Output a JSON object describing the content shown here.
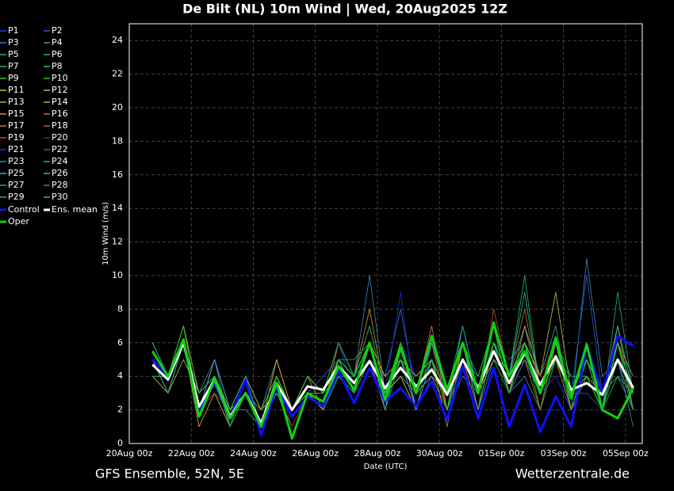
{
  "chart_data": {
    "type": "line",
    "title": "De Bilt  (NL)  10m Wind | Wed, 20Aug2025 12Z",
    "y_label": "10m Wind (m/s)",
    "x_label": "Date (UTC)",
    "footer_left": "GFS Ensemble, 52N, 5E",
    "footer_right": "Wetterzentrale.de",
    "xlim": [
      0,
      397
    ],
    "ylim": [
      0,
      25
    ],
    "xticks": [
      {
        "value": 0,
        "label": "20Aug 00z"
      },
      {
        "value": 48,
        "label": "22Aug 00z"
      },
      {
        "value": 96,
        "label": "24Aug 00z"
      },
      {
        "value": 144,
        "label": "26Aug 00z"
      },
      {
        "value": 192,
        "label": "28Aug 00z"
      },
      {
        "value": 240,
        "label": "30Aug 00z"
      },
      {
        "value": 288,
        "label": "01Sep 00z"
      },
      {
        "value": 336,
        "label": "03Sep 00z"
      },
      {
        "value": 384,
        "label": "05Sep 00z"
      }
    ],
    "yticks": [
      0,
      2,
      4,
      6,
      8,
      10,
      12,
      14,
      16,
      18,
      20,
      22,
      24
    ],
    "grid": true,
    "x": [
      18,
      30,
      42,
      54,
      66,
      78,
      90,
      102,
      114,
      126,
      138,
      150,
      162,
      174,
      186,
      198,
      210,
      222,
      234,
      246,
      258,
      270,
      282,
      294,
      306,
      318,
      330,
      342,
      354,
      366,
      378,
      390
    ],
    "series": [
      {
        "name": "P1",
        "color": "#1a3cff",
        "values": [
          5,
          4,
          7,
          2,
          4,
          1,
          3,
          1,
          4,
          2,
          4,
          3,
          6,
          3,
          5,
          2,
          6,
          4,
          5,
          2,
          6,
          3,
          7,
          4,
          6,
          3,
          4,
          2,
          5,
          3,
          6,
          4
        ]
      },
      {
        "name": "P2",
        "color": "#2a5ad8",
        "values": [
          4,
          4,
          6,
          3,
          4,
          2,
          3,
          2,
          3,
          1,
          3,
          4,
          5,
          4,
          6,
          3,
          5,
          2,
          4,
          3,
          5,
          2,
          6,
          3,
          5,
          4,
          6,
          3,
          3,
          2,
          5,
          3
        ]
      },
      {
        "name": "P3",
        "color": "#3a78c8",
        "values": [
          5,
          3,
          6,
          2,
          5,
          2,
          4,
          1,
          4,
          2,
          3,
          2,
          4,
          3,
          5,
          4,
          8,
          3,
          5,
          2,
          4,
          3,
          6,
          5,
          6,
          3,
          5,
          4,
          4,
          3,
          6,
          2
        ]
      },
      {
        "name": "P4",
        "color": "#3a8ac0",
        "values": [
          4,
          4,
          7,
          2,
          3,
          1,
          3,
          1,
          3,
          2,
          4,
          3,
          5,
          4,
          10,
          3,
          4,
          2,
          6,
          3,
          5,
          4,
          7,
          3,
          4,
          2,
          6,
          2,
          11,
          4,
          5,
          1
        ]
      },
      {
        "name": "P5",
        "color": "#2aa0b0",
        "values": [
          6,
          4,
          6,
          3,
          5,
          1,
          4,
          2,
          5,
          2,
          3,
          3,
          6,
          4,
          5,
          2,
          6,
          3,
          4,
          2,
          5,
          3,
          6,
          4,
          7,
          3,
          5,
          3,
          4,
          2,
          6,
          3
        ]
      },
      {
        "name": "P6",
        "color": "#20b09a",
        "values": [
          5,
          3,
          6,
          2,
          4,
          2,
          3,
          1,
          4,
          2,
          4,
          2,
          5,
          3,
          6,
          3,
          5,
          4,
          5,
          3,
          6,
          2,
          5,
          3,
          6,
          4,
          7,
          2,
          5,
          3,
          4,
          2
        ]
      },
      {
        "name": "P7",
        "color": "#20b880",
        "values": [
          4,
          4,
          6,
          2,
          4,
          2,
          2,
          1,
          3,
          1,
          3,
          3,
          4,
          4,
          5,
          3,
          4,
          3,
          4,
          2,
          5,
          3,
          6,
          3,
          5,
          3,
          6,
          4,
          4,
          2,
          5,
          3
        ]
      },
      {
        "name": "P8",
        "color": "#20c068",
        "values": [
          6,
          4,
          7,
          2,
          5,
          2,
          3,
          1,
          4,
          2,
          3,
          3,
          5,
          5,
          6,
          3,
          6,
          2,
          5,
          3,
          7,
          3,
          6,
          4,
          10,
          3,
          5,
          3,
          6,
          2,
          4,
          3
        ]
      },
      {
        "name": "P9",
        "color": "#30c850",
        "values": [
          5,
          4,
          6,
          2,
          4,
          1,
          3,
          1,
          4,
          2,
          4,
          3,
          5,
          4,
          6,
          2,
          5,
          3,
          5,
          2,
          6,
          4,
          7,
          3,
          6,
          2,
          5,
          3,
          4,
          3,
          6,
          2
        ]
      },
      {
        "name": "P10",
        "color": "#20d020",
        "values": [
          5,
          4,
          6,
          2,
          3,
          2,
          3,
          1,
          4,
          2,
          3,
          2,
          4,
          3,
          5,
          3,
          5,
          3,
          4,
          3,
          5,
          3,
          6,
          4,
          5,
          3,
          6,
          2,
          5,
          3,
          7,
          3
        ]
      },
      {
        "name": "P11",
        "color": "#b8c840",
        "values": [
          4,
          3,
          5,
          3,
          4,
          2,
          3,
          2,
          3,
          2,
          4,
          3,
          6,
          4,
          5,
          3,
          4,
          2,
          5,
          3,
          6,
          3,
          5,
          4,
          6,
          4,
          9,
          3,
          4,
          2,
          5,
          2
        ]
      },
      {
        "name": "P12",
        "color": "#d8b050",
        "values": [
          4,
          4,
          6,
          1,
          3,
          1,
          3,
          1,
          5,
          2,
          3,
          2,
          5,
          3,
          6,
          4,
          5,
          3,
          6,
          2,
          5,
          2,
          6,
          3,
          5,
          3,
          5,
          2,
          4,
          2,
          5,
          3
        ]
      },
      {
        "name": "P13",
        "color": "#c8b030",
        "values": [
          5,
          4,
          7,
          3,
          4,
          2,
          4,
          2,
          4,
          2,
          4,
          3,
          5,
          4,
          7,
          3,
          5,
          4,
          5,
          3,
          6,
          3,
          7,
          4,
          6,
          3,
          5,
          3,
          5,
          3,
          6,
          3
        ]
      },
      {
        "name": "P14",
        "color": "#e0a020",
        "values": [
          4,
          4,
          6,
          2,
          4,
          2,
          3,
          1,
          5,
          2,
          3,
          3,
          6,
          4,
          8,
          3,
          6,
          2,
          5,
          2,
          6,
          3,
          6,
          3,
          7,
          4,
          6,
          3,
          5,
          2,
          6,
          2
        ]
      },
      {
        "name": "P15",
        "color": "#c89050",
        "values": [
          5,
          3,
          6,
          2,
          4,
          1,
          3,
          1,
          4,
          2,
          4,
          3,
          5,
          4,
          6,
          3,
          5,
          2,
          5,
          1,
          6,
          3,
          7,
          4,
          6,
          3,
          6,
          3,
          4,
          2,
          5,
          3
        ]
      },
      {
        "name": "P16",
        "color": "#b87040",
        "values": [
          5,
          4,
          6,
          2,
          5,
          2,
          3,
          1,
          4,
          2,
          3,
          3,
          5,
          3,
          6,
          3,
          5,
          3,
          4,
          2,
          5,
          3,
          6,
          4,
          8,
          3,
          5,
          2,
          4,
          3,
          7,
          2
        ]
      },
      {
        "name": "P17",
        "color": "#d87030",
        "values": [
          4,
          4,
          7,
          2,
          4,
          2,
          4,
          1,
          4,
          2,
          4,
          2,
          6,
          4,
          5,
          2,
          6,
          3,
          7,
          2,
          6,
          3,
          6,
          3,
          5,
          2,
          6,
          3,
          5,
          2,
          6,
          4
        ]
      },
      {
        "name": "P18",
        "color": "#c85028",
        "values": [
          5,
          3,
          6,
          2,
          4,
          1,
          3,
          1,
          4,
          2,
          3,
          3,
          5,
          4,
          6,
          3,
          5,
          3,
          5,
          2,
          5,
          2,
          8,
          4,
          6,
          3,
          5,
          3,
          4,
          2,
          5,
          3
        ]
      },
      {
        "name": "P19",
        "color": "#e03020",
        "values": [
          5,
          4,
          6,
          2,
          4,
          2,
          3,
          1,
          3,
          2,
          4,
          3,
          6,
          4,
          6,
          3,
          6,
          3,
          6,
          2,
          6,
          3,
          6,
          4,
          6,
          3,
          5,
          3,
          5,
          2,
          6,
          3
        ]
      },
      {
        "name": "P20",
        "color": "#a01010",
        "values": [
          4,
          4,
          6,
          2,
          3,
          2,
          3,
          1,
          4,
          1,
          3,
          3,
          5,
          3,
          6,
          3,
          5,
          3,
          5,
          2,
          6,
          3,
          6,
          3,
          5,
          4,
          6,
          3,
          4,
          2,
          5,
          2
        ]
      },
      {
        "name": "P21",
        "color": "#1030e0",
        "values": [
          5,
          4,
          6,
          2,
          4,
          2,
          3,
          1,
          4,
          2,
          3,
          3,
          5,
          4,
          5,
          3,
          9,
          2,
          5,
          2,
          5,
          3,
          6,
          3,
          5,
          3,
          6,
          3,
          5,
          2,
          6,
          3
        ]
      },
      {
        "name": "P22",
        "color": "#2060d0",
        "values": [
          5,
          4,
          6,
          2,
          4,
          2,
          4,
          1,
          4,
          2,
          4,
          3,
          5,
          4,
          6,
          3,
          6,
          3,
          6,
          3,
          6,
          3,
          7,
          4,
          6,
          3,
          6,
          3,
          10,
          3,
          6,
          3
        ]
      },
      {
        "name": "P23",
        "color": "#3080c8",
        "values": [
          4,
          4,
          6,
          2,
          4,
          1,
          3,
          1,
          3,
          2,
          3,
          3,
          6,
          4,
          7,
          3,
          5,
          3,
          5,
          3,
          6,
          3,
          6,
          3,
          5,
          3,
          5,
          3,
          4,
          2,
          5,
          2
        ]
      },
      {
        "name": "P24",
        "color": "#30a0d8",
        "values": [
          5,
          4,
          7,
          2,
          5,
          2,
          4,
          1,
          4,
          2,
          4,
          3,
          5,
          3,
          6,
          3,
          5,
          2,
          5,
          2,
          7,
          3,
          6,
          4,
          6,
          3,
          6,
          3,
          5,
          3,
          6,
          3
        ]
      },
      {
        "name": "P25",
        "color": "#20b8c0",
        "values": [
          5,
          3,
          6,
          2,
          4,
          2,
          3,
          1,
          4,
          2,
          3,
          3,
          5,
          4,
          6,
          2,
          6,
          3,
          5,
          2,
          6,
          2,
          6,
          3,
          6,
          3,
          5,
          3,
          4,
          2,
          6,
          3
        ]
      },
      {
        "name": "P26",
        "color": "#20c0a0",
        "values": [
          6,
          4,
          6,
          2,
          4,
          2,
          3,
          1,
          4,
          2,
          4,
          3,
          6,
          4,
          6,
          3,
          6,
          3,
          6,
          3,
          6,
          3,
          7,
          4,
          9,
          3,
          6,
          3,
          5,
          2,
          7,
          3
        ]
      },
      {
        "name": "P27",
        "color": "#20b070",
        "values": [
          5,
          4,
          6,
          3,
          4,
          2,
          3,
          2,
          4,
          2,
          3,
          3,
          5,
          3,
          6,
          3,
          5,
          3,
          5,
          2,
          6,
          3,
          6,
          3,
          6,
          3,
          6,
          3,
          5,
          2,
          9,
          3
        ]
      },
      {
        "name": "P28",
        "color": "#20a040",
        "values": [
          4,
          4,
          6,
          2,
          4,
          1,
          3,
          1,
          4,
          2,
          4,
          3,
          6,
          4,
          7,
          3,
          6,
          3,
          5,
          2,
          5,
          3,
          6,
          4,
          6,
          3,
          6,
          3,
          4,
          2,
          5,
          3
        ]
      },
      {
        "name": "P29",
        "color": "#30c030",
        "values": [
          5,
          4,
          7,
          2,
          4,
          2,
          4,
          1,
          4,
          2,
          4,
          3,
          5,
          4,
          6,
          3,
          5,
          3,
          5,
          3,
          6,
          3,
          6,
          3,
          6,
          3,
          6,
          3,
          5,
          3,
          6,
          2
        ]
      },
      {
        "name": "P30",
        "color": "#10e010",
        "values": [
          5,
          4,
          6,
          2,
          4,
          2,
          3,
          1,
          4,
          2,
          3,
          3,
          5,
          4,
          6,
          3,
          6,
          3,
          5,
          2,
          6,
          3,
          6,
          4,
          6,
          3,
          5,
          3,
          4,
          2,
          6,
          3
        ]
      },
      {
        "name": "Control",
        "color": "#1010ff",
        "values": [
          5,
          4,
          6,
          2,
          3.6,
          1.5,
          3.8,
          0.5,
          3.4,
          1.6,
          2.8,
          2.2,
          4.3,
          2.4,
          4.5,
          2.5,
          3.3,
          2.2,
          3.7,
          1.4,
          4.6,
          1.5,
          4.5,
          1.0,
          3.5,
          0.7,
          2.8,
          1.0,
          5.8,
          3.0,
          6.4,
          5.8
        ]
      },
      {
        "name": "Ens. mean",
        "color": "#ffffff",
        "values": [
          4.7,
          3.8,
          6.0,
          2.2,
          3.8,
          1.6,
          3.0,
          1.2,
          3.6,
          2.0,
          3.4,
          3.2,
          4.6,
          3.6,
          4.9,
          3.3,
          4.5,
          3.4,
          4.4,
          2.9,
          5.0,
          3.3,
          5.5,
          3.6,
          5.4,
          3.5,
          5.2,
          3.2,
          3.6,
          2.9,
          5.0,
          3.3
        ]
      },
      {
        "name": "Oper",
        "color": "#10d010",
        "values": [
          5.5,
          4,
          6.2,
          1.6,
          3.8,
          1.5,
          3.0,
          1.0,
          3.6,
          0.3,
          3.0,
          2.5,
          4.6,
          3.2,
          6.0,
          2.6,
          5.7,
          3.0,
          6.4,
          3.2,
          6.0,
          3.0,
          7.2,
          4.0,
          5.5,
          3.0,
          6.3,
          2.7,
          5.9,
          2.0,
          1.5,
          3.3
        ]
      }
    ]
  }
}
